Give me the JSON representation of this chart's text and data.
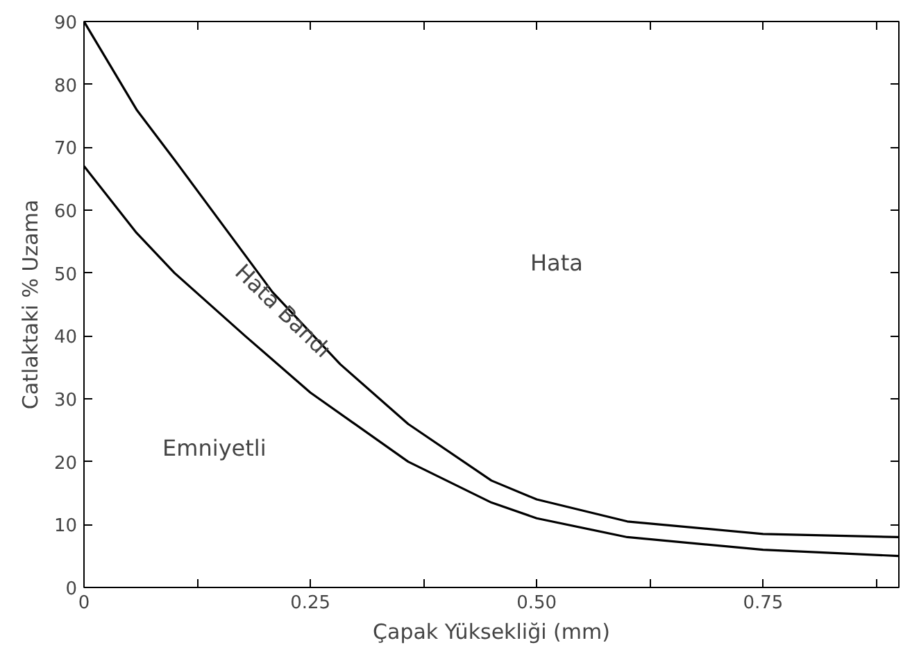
{
  "chart_data": {
    "type": "line",
    "xlabel": "Çapak Yüksekliği (mm)",
    "ylabel": "Catlaktaki % Uzama",
    "xlim": [
      0,
      0.9
    ],
    "ylim": [
      0,
      90
    ],
    "xticks": [
      0,
      {
        "value": 0.125,
        "label": null
      },
      0.25,
      {
        "value": 0.375,
        "label": null
      },
      {
        "value": 0.5,
        "label": "0.50"
      },
      {
        "value": 0.625,
        "label": null
      },
      0.75,
      {
        "value": 0.875,
        "label": null
      }
    ],
    "yticks": [
      0,
      10,
      20,
      30,
      40,
      50,
      60,
      70,
      80,
      90
    ],
    "grid": false,
    "marker": "none",
    "line_style": "solid",
    "series": [
      {
        "color": "#000000",
        "x": [
          0,
          0.058,
          0.1,
          0.208,
          0.283,
          0.358,
          0.45,
          0.5,
          0.6,
          0.75,
          0.9
        ],
        "values": [
          90,
          76,
          68,
          47,
          35.5,
          26,
          17,
          14,
          10.5,
          8.5,
          8
        ]
      },
      {
        "color": "#000000",
        "x": [
          0,
          0.058,
          0.1,
          0.178,
          0.25,
          0.358,
          0.45,
          0.5,
          0.6,
          0.75,
          0.9
        ],
        "values": [
          67,
          56.4,
          50,
          40,
          31,
          20,
          13.5,
          11,
          8,
          6,
          5
        ]
      }
    ],
    "annotations": [
      "Hata",
      {
        "text": "Hata Bandı",
        "x": 0.22,
        "y": 44
      },
      "Emniyetli"
    ]
  }
}
